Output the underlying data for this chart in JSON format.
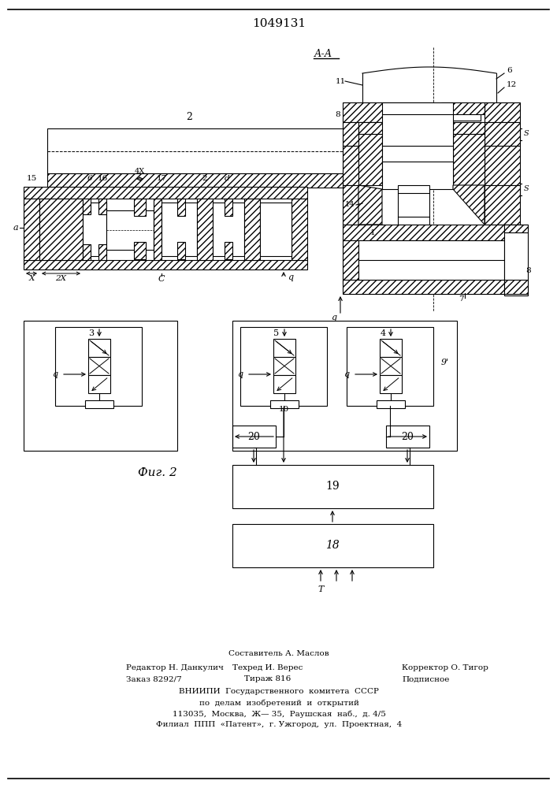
{
  "patent_number": "1049131",
  "fig_label": "Фиг. 2",
  "section_label": "А-А",
  "bg_color": "#ffffff",
  "footer_lines": [
    "Составитель А. Маслов",
    "Редактор Н. Данкулич",
    "Техред И. Верес",
    "Корректор О. Тигор",
    "Заказ 8292/7",
    "Тираж 816",
    "Подписное",
    "ВНИИПИ  Государственного  комитета  СССР",
    "по  делам  изобретений  и  открытий",
    "113035,  Москва,  Ж— 35,  Раушская  наб.,  д. 4/5",
    "Филиал  ППП  «Патент»,  г. Ужгород,  ул.  Проектная,  4"
  ]
}
